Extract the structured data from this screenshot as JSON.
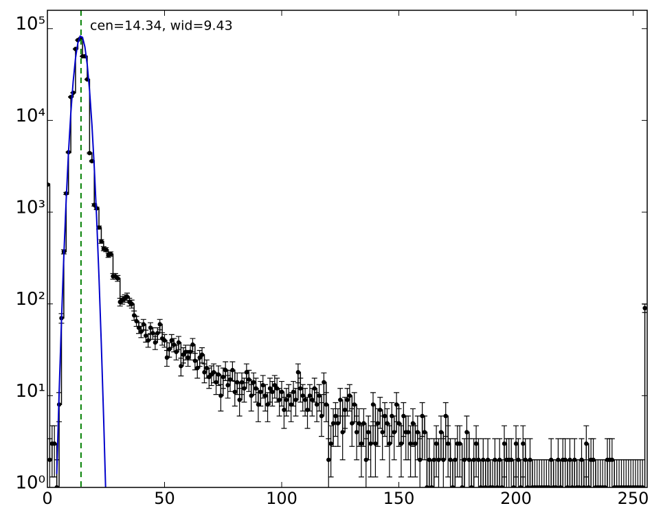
{
  "chart_data": {
    "type": "errorbar",
    "annotation": "cen=14.34, wid=9.43",
    "annotation_color": "#008000",
    "center_line": {
      "x": 14.34,
      "color": "#008000"
    },
    "log_y": true,
    "xlim": [
      0,
      256
    ],
    "ylim": [
      1,
      158489
    ],
    "xticks": [
      0,
      50,
      100,
      150,
      200,
      250
    ],
    "yticks": [
      {
        "value": 1,
        "label": "10⁰"
      },
      {
        "value": 10,
        "label": "10¹"
      },
      {
        "value": 100,
        "label": "10²"
      },
      {
        "value": 1000,
        "label": "10³"
      },
      {
        "value": 10000,
        "label": "10⁴"
      },
      {
        "value": 100000,
        "label": "10⁵"
      }
    ],
    "color": "#000000",
    "x": [
      0,
      1,
      2,
      3,
      4,
      5,
      6,
      7,
      8,
      9,
      10,
      11,
      12,
      13,
      14,
      15,
      16,
      17,
      18,
      19,
      20,
      21,
      22,
      23,
      24,
      25,
      26,
      27,
      28,
      29,
      30,
      31,
      32,
      33,
      34,
      35,
      36,
      37,
      38,
      39,
      40,
      41,
      42,
      43,
      44,
      45,
      46,
      47,
      48,
      49,
      50,
      51,
      52,
      53,
      54,
      55,
      56,
      57,
      58,
      59,
      60,
      61,
      62,
      63,
      64,
      65,
      66,
      67,
      68,
      69,
      70,
      71,
      72,
      73,
      74,
      75,
      76,
      77,
      78,
      79,
      80,
      81,
      82,
      83,
      84,
      85,
      86,
      87,
      88,
      89,
      90,
      91,
      92,
      93,
      94,
      95,
      96,
      97,
      98,
      99,
      100,
      101,
      102,
      103,
      104,
      105,
      106,
      107,
      108,
      109,
      110,
      111,
      112,
      113,
      114,
      115,
      116,
      117,
      118,
      119,
      120,
      121,
      122,
      123,
      124,
      125,
      126,
      127,
      128,
      129,
      130,
      131,
      132,
      133,
      134,
      135,
      136,
      137,
      138,
      139,
      140,
      141,
      142,
      143,
      144,
      145,
      146,
      147,
      148,
      149,
      150,
      151,
      152,
      153,
      154,
      155,
      156,
      157,
      158,
      159,
      160,
      161,
      162,
      163,
      164,
      165,
      166,
      167,
      168,
      169,
      170,
      171,
      172,
      173,
      174,
      175,
      176,
      177,
      178,
      179,
      180,
      181,
      182,
      183,
      184,
      185,
      186,
      187,
      188,
      189,
      190,
      191,
      192,
      193,
      194,
      195,
      196,
      197,
      198,
      199,
      200,
      201,
      202,
      203,
      204,
      205,
      206,
      207,
      208,
      209,
      210,
      211,
      212,
      213,
      214,
      215,
      216,
      217,
      218,
      219,
      220,
      221,
      222,
      223,
      224,
      225,
      226,
      227,
      228,
      229,
      230,
      231,
      232,
      233,
      234,
      235,
      236,
      237,
      238,
      239,
      240,
      241,
      242,
      243,
      244,
      245,
      246,
      247,
      248,
      249,
      250,
      251,
      252,
      253,
      254,
      255
    ],
    "values": [
      2000,
      2,
      3,
      3,
      1,
      8,
      70,
      370,
      1600,
      4500,
      18000,
      20000,
      60000,
      75000,
      78000,
      50000,
      50000,
      28000,
      4400,
      3600,
      1200,
      1100,
      680,
      480,
      400,
      390,
      340,
      350,
      200,
      200,
      190,
      105,
      110,
      115,
      120,
      105,
      100,
      75,
      65,
      55,
      50,
      60,
      45,
      40,
      55,
      48,
      38,
      48,
      60,
      42,
      40,
      26,
      32,
      40,
      36,
      30,
      38,
      21,
      28,
      30,
      26,
      30,
      36,
      24,
      20,
      26,
      28,
      18,
      20,
      16,
      17,
      18,
      14,
      17,
      10,
      16,
      19,
      13,
      15,
      19,
      11,
      14,
      9,
      14,
      12,
      18,
      15,
      10,
      14,
      12,
      8,
      11,
      13,
      10,
      8,
      12,
      11,
      13,
      12,
      9,
      11,
      7,
      9,
      10,
      8,
      11,
      9,
      18,
      12,
      10,
      9,
      7,
      10,
      9,
      12,
      8,
      10,
      6,
      14,
      8,
      2,
      3,
      5,
      6,
      5,
      9,
      4,
      7,
      9,
      10,
      5,
      8,
      4,
      5,
      3,
      5,
      2,
      4,
      3,
      8,
      3,
      5,
      7,
      4,
      6,
      5,
      3,
      6,
      4,
      8,
      5,
      3,
      6,
      4,
      4,
      3,
      5,
      3,
      4,
      2,
      6,
      4,
      1,
      2,
      1,
      2,
      3,
      2,
      4,
      2,
      6,
      3,
      2,
      1,
      2,
      3,
      3,
      1,
      2,
      4,
      2,
      1,
      2,
      3,
      2,
      1,
      2,
      1,
      2,
      1,
      1,
      2,
      1,
      2,
      1,
      3,
      2,
      2,
      2,
      1,
      3,
      2,
      1,
      3,
      2,
      1,
      2,
      1,
      1,
      1,
      1,
      1,
      1,
      1,
      1,
      2,
      1,
      1,
      2,
      1,
      2,
      2,
      1,
      2,
      1,
      2,
      1,
      1,
      2,
      1,
      3,
      1,
      2,
      2,
      1,
      1,
      1,
      1,
      1,
      2,
      2,
      2,
      1,
      1,
      1,
      1,
      1,
      1,
      1,
      1,
      1,
      1,
      1,
      1,
      1,
      90
    ],
    "errors": [
      44.7,
      1.4,
      1.7,
      1.7,
      1,
      2.8,
      8.4,
      19.2,
      40,
      67.1,
      134.2,
      141.4,
      244.9,
      273.9,
      279.3,
      223.6,
      223.6,
      167.3,
      66.3,
      60,
      34.6,
      33.2,
      26.1,
      21.9,
      20,
      19.7,
      18.4,
      18.7,
      14.1,
      14.1,
      13.8,
      10.2,
      10.5,
      10.7,
      11,
      10.2,
      10,
      8.7,
      8.1,
      7.4,
      7.1,
      7.7,
      6.7,
      6.3,
      7.4,
      6.9,
      6.2,
      6.9,
      7.7,
      6.5,
      6.3,
      5.1,
      5.7,
      6.3,
      6,
      5.5,
      6.2,
      4.6,
      5.3,
      5.5,
      5.1,
      5.5,
      6,
      4.9,
      4.5,
      5.1,
      5.3,
      4.2,
      4.5,
      4,
      4.1,
      4.2,
      3.7,
      4.1,
      3.2,
      4,
      4.4,
      3.6,
      3.9,
      4.4,
      3.3,
      3.7,
      3,
      3.7,
      3.5,
      4.2,
      3.9,
      3.2,
      3.7,
      3.5,
      2.8,
      3.3,
      3.6,
      3.2,
      2.8,
      3.5,
      3.3,
      3.6,
      3.5,
      3,
      3.3,
      2.6,
      3,
      3.2,
      2.8,
      3.3,
      3,
      4.2,
      3.5,
      3.2,
      3,
      2.6,
      3.2,
      3,
      3.5,
      2.8,
      3.2,
      2.4,
      3.7,
      2.8,
      1.4,
      1.7,
      2.2,
      2.4,
      2.2,
      3,
      2,
      2.6,
      3,
      3.2,
      2.2,
      2.8,
      2,
      2.2,
      1.7,
      2.2,
      1.4,
      2,
      1.7,
      2.8,
      1.7,
      2.2,
      2.6,
      2,
      2.4,
      2.2,
      1.7,
      2.4,
      2,
      2.8,
      2.2,
      1.7,
      2.4,
      2,
      2,
      1.7,
      2.2,
      1.7,
      2,
      1.4,
      2.4,
      2,
      1,
      1.4,
      1,
      1.4,
      1.7,
      1.4,
      2,
      1.4,
      2.4,
      1.7,
      1.4,
      1,
      1.4,
      1.7,
      1.7,
      1,
      1.4,
      2,
      1.4,
      1,
      1.4,
      1.7,
      1.4,
      1,
      1.4,
      1,
      1.4,
      1,
      1,
      1.4,
      1,
      1.4,
      1,
      1.7,
      1.4,
      1.4,
      1.4,
      1,
      1.7,
      1.4,
      1,
      1.7,
      1.4,
      1,
      1.4,
      1,
      1,
      1,
      1,
      1,
      1,
      1,
      1,
      1.4,
      1,
      1,
      1.4,
      1,
      1.4,
      1.4,
      1,
      1.4,
      1,
      1.4,
      1,
      1,
      1.4,
      1,
      1.7,
      1,
      1.4,
      1.4,
      1,
      1,
      1,
      1,
      1,
      1.4,
      1.4,
      1.4,
      1,
      1,
      1,
      1,
      1,
      1,
      1,
      1,
      1,
      1,
      1,
      1,
      1,
      9.5
    ],
    "fit": {
      "color": "#0000cc",
      "x": [
        4,
        5,
        6,
        7,
        8,
        9,
        10,
        11,
        12,
        13,
        14,
        15,
        16,
        17,
        18,
        19,
        20,
        21,
        22,
        23,
        24,
        25
      ],
      "values": [
        1.4,
        10.7,
        65,
        330,
        1337,
        4480,
        12100,
        26600,
        47800,
        69800,
        83000,
        80300,
        63200,
        40600,
        21100,
        9000,
        3100,
        878,
        200,
        37,
        5.7,
        0.7
      ]
    }
  }
}
